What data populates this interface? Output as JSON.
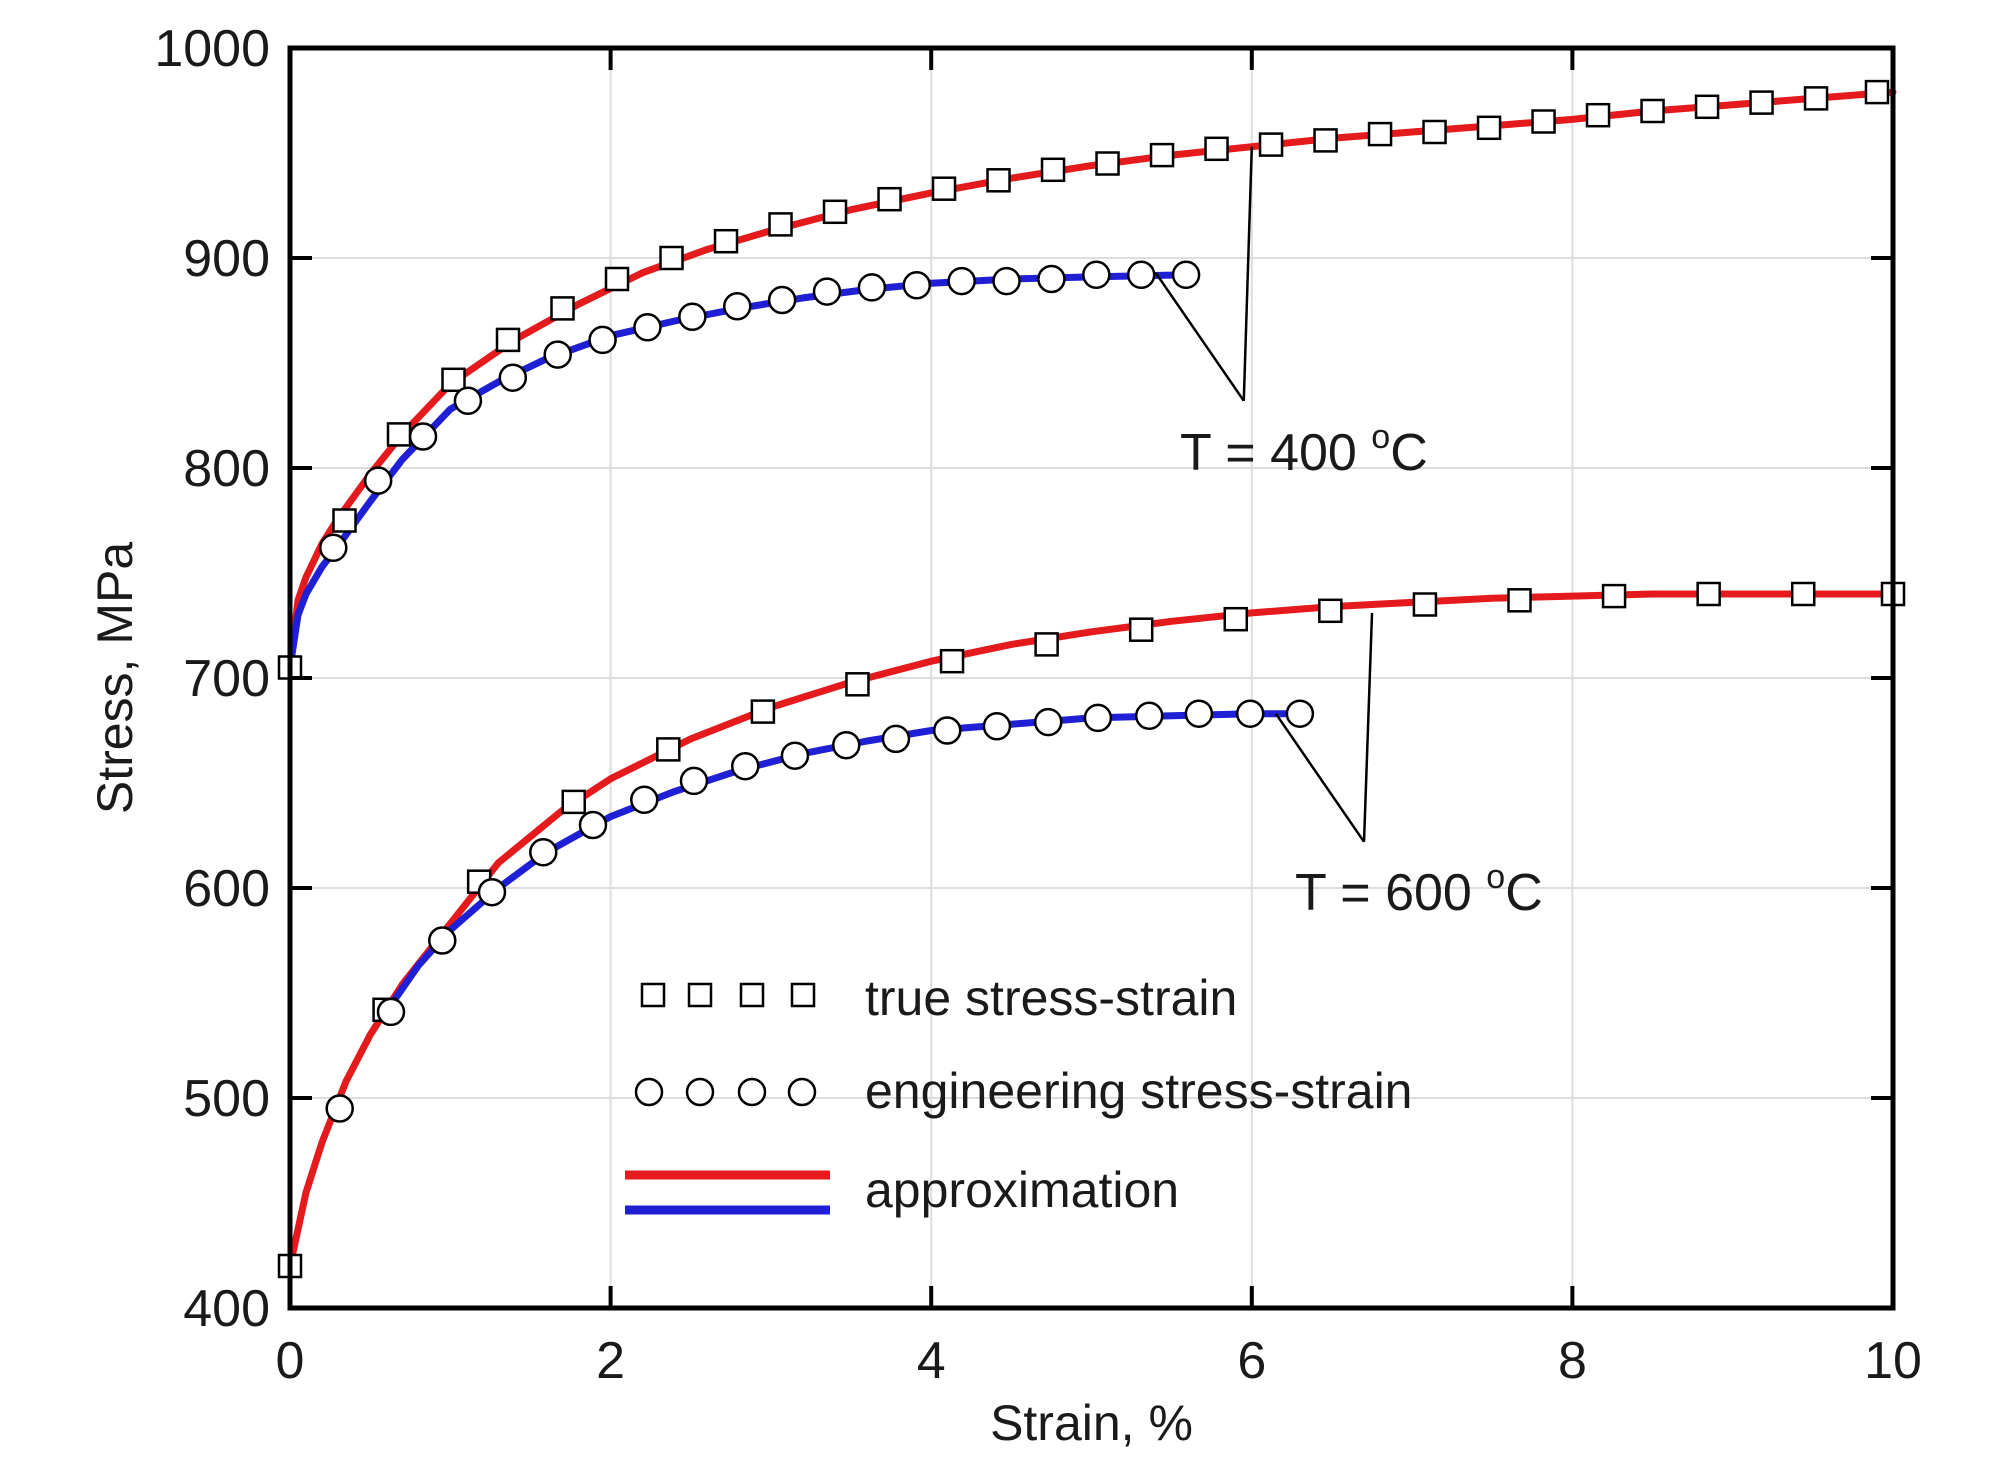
{
  "chart_data": {
    "type": "line",
    "title": "",
    "xlabel": "Strain, %",
    "ylabel": "Stress, MPa",
    "xlim": [
      0,
      10
    ],
    "ylim": [
      400,
      1000
    ],
    "xticks": [
      "0",
      "2",
      "4",
      "6",
      "8",
      "10"
    ],
    "yticks": [
      "400",
      "500",
      "600",
      "700",
      "800",
      "900",
      "1000"
    ],
    "grid": true,
    "legend_position": "bottom-center",
    "legend": {
      "true_label": "true stress-strain",
      "eng_label": "engineering stress-strain",
      "approx_label": "approximation"
    },
    "colors": {
      "true_approx": "#e41a1c",
      "eng_approx": "#1f1fd6",
      "axis": "#000000",
      "grid": "#dddddd"
    },
    "annotations": [
      {
        "id": "t400",
        "prefix": "T = 400 ",
        "sup": "o",
        "suffix": "C",
        "text_at": [
          7.75,
          810
        ],
        "leader_vertex": [
          5.95,
          832
        ],
        "leader_targets": [
          [
            5.4,
            893
          ],
          [
            6.0,
            953
          ]
        ]
      },
      {
        "id": "t600",
        "prefix": "T = 600 ",
        "sup": "o",
        "suffix": "C",
        "text_at": [
          6.3,
          600
        ],
        "leader_vertex": [
          6.7,
          622
        ],
        "leader_targets": [
          [
            6.15,
            683
          ],
          [
            6.75,
            731
          ]
        ]
      }
    ],
    "series": [
      {
        "name": "true stress-strain",
        "temperature": "400 oC",
        "marker": "square",
        "x": [
          0.0,
          0.34,
          0.68,
          1.02,
          1.36,
          1.7,
          2.04,
          2.38,
          2.72,
          3.06,
          3.4,
          3.74,
          4.08,
          4.42,
          4.76,
          5.1,
          5.44,
          5.78,
          6.12,
          6.46,
          6.8,
          7.14,
          7.48,
          7.82,
          8.16,
          8.5,
          8.84,
          9.18,
          9.52,
          9.9
        ],
        "y": [
          705,
          775,
          816,
          842,
          861,
          876,
          890,
          900,
          908,
          916,
          922,
          928,
          933,
          937,
          942,
          945,
          949,
          952,
          954,
          956,
          959,
          960,
          962,
          965,
          968,
          970,
          972,
          974,
          976,
          979
        ]
      },
      {
        "name": "engineering stress-strain",
        "temperature": "400 oC",
        "marker": "circle",
        "x": [
          0.27,
          0.55,
          0.83,
          1.11,
          1.39,
          1.67,
          1.95,
          2.23,
          2.51,
          2.79,
          3.07,
          3.35,
          3.63,
          3.91,
          4.19,
          4.47,
          4.75,
          5.03,
          5.31,
          5.59
        ],
        "y": [
          762,
          794,
          815,
          832,
          843,
          854,
          861,
          867,
          872,
          877,
          880,
          884,
          886,
          887,
          889,
          889,
          890,
          892,
          892,
          892
        ]
      },
      {
        "name": "approximation",
        "temperature": "400 oC (true)",
        "style": "line",
        "color": "#e41a1c",
        "x": [
          0,
          0.05,
          0.1,
          0.2,
          0.3,
          0.5,
          0.7,
          1.0,
          1.4,
          1.8,
          2.2,
          2.6,
          3.0,
          3.5,
          4.0,
          4.5,
          5.0,
          5.5,
          6.0,
          6.5,
          7.0,
          7.5,
          8.0,
          8.5,
          9.0,
          9.5,
          10.0
        ],
        "y": [
          705,
          737,
          748,
          764,
          776,
          797,
          816,
          840,
          861,
          878,
          893,
          904,
          913,
          923,
          931,
          938,
          944,
          949,
          953,
          957,
          960,
          963,
          966,
          970,
          973,
          976,
          979
        ]
      },
      {
        "name": "approximation",
        "temperature": "400 oC (engineering)",
        "style": "line",
        "color": "#1f1fd6",
        "x": [
          0,
          0.05,
          0.1,
          0.2,
          0.3,
          0.5,
          0.7,
          1.0,
          1.3,
          1.6,
          2.0,
          2.4,
          2.8,
          3.2,
          3.6,
          4.0,
          4.5,
          5.0,
          5.6
        ],
        "y": [
          705,
          730,
          740,
          753,
          763,
          784,
          804,
          828,
          841,
          852,
          863,
          870,
          876,
          881,
          885,
          888,
          890,
          891,
          892
        ]
      },
      {
        "name": "true stress-strain",
        "temperature": "600 oC",
        "marker": "square",
        "x": [
          0.0,
          0.59,
          1.18,
          1.77,
          2.36,
          2.95,
          3.54,
          4.13,
          4.72,
          5.31,
          5.9,
          6.49,
          7.08,
          7.67,
          8.26,
          8.85,
          9.44,
          10.0
        ],
        "y": [
          420,
          542,
          603,
          641,
          666,
          684,
          697,
          708,
          716,
          723,
          728,
          732,
          735,
          737,
          739,
          740,
          740,
          740
        ]
      },
      {
        "name": "engineering stress-strain",
        "temperature": "600 oC",
        "marker": "circle",
        "x": [
          0.31,
          0.63,
          0.95,
          1.26,
          1.58,
          1.89,
          2.21,
          2.52,
          2.84,
          3.15,
          3.47,
          3.78,
          4.1,
          4.41,
          4.73,
          5.04,
          5.36,
          5.67,
          5.99,
          6.3
        ],
        "y": [
          495,
          541,
          575,
          598,
          617,
          630,
          642,
          651,
          658,
          663,
          668,
          671,
          675,
          677,
          679,
          681,
          682,
          683,
          683,
          683
        ]
      },
      {
        "name": "approximation",
        "temperature": "600 oC (true)",
        "style": "line",
        "color": "#e41a1c",
        "x": [
          0,
          0.1,
          0.2,
          0.35,
          0.5,
          0.7,
          1.0,
          1.3,
          1.7,
          2.0,
          2.5,
          3.0,
          3.5,
          4.0,
          4.5,
          5.0,
          5.5,
          6.0,
          6.5,
          7.0,
          7.5,
          8.0,
          8.5,
          9.0,
          9.5,
          10.0
        ],
        "y": [
          420,
          455,
          479,
          508,
          530,
          554,
          583,
          612,
          637,
          652,
          671,
          686,
          698,
          708,
          716,
          722,
          727,
          731,
          734,
          736,
          738,
          739,
          740,
          740,
          740,
          740
        ]
      },
      {
        "name": "approximation",
        "temperature": "600 oC (engineering)",
        "style": "line",
        "color": "#1f1fd6",
        "x": [
          0.6,
          0.8,
          1.0,
          1.3,
          1.6,
          2.0,
          2.4,
          2.8,
          3.2,
          3.6,
          4.0,
          4.5,
          5.0,
          5.5,
          6.0,
          6.3
        ],
        "y": [
          541,
          563,
          580,
          600,
          617,
          634,
          646,
          656,
          664,
          670,
          675,
          678,
          681,
          682,
          683,
          683
        ]
      }
    ]
  }
}
